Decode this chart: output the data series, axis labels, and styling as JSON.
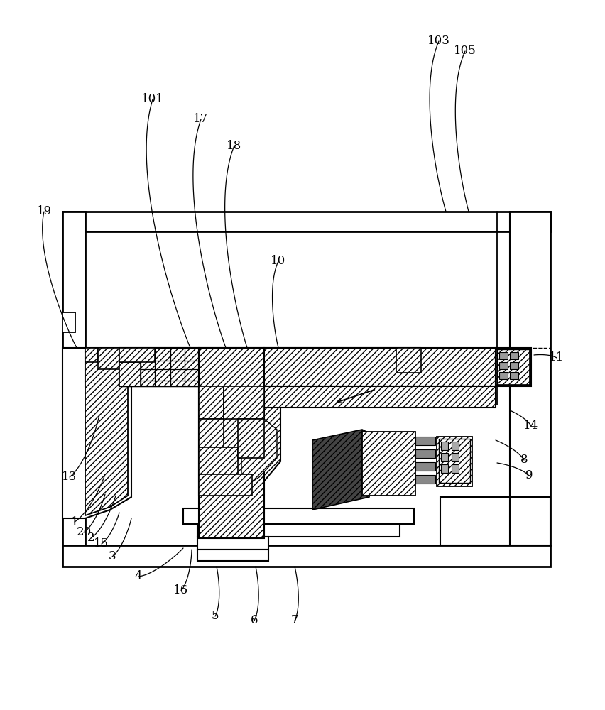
{
  "bg_color": "#ffffff",
  "lc": "#000000",
  "fig_w": 8.52,
  "fig_h": 10.0,
  "dpi": 100,
  "labels": [
    [
      "1",
      105,
      735,
      148,
      668
    ],
    [
      "2",
      128,
      758,
      163,
      698
    ],
    [
      "3",
      158,
      784,
      185,
      730
    ],
    [
      "4",
      195,
      812,
      258,
      772
    ],
    [
      "5",
      303,
      868,
      305,
      798
    ],
    [
      "6",
      358,
      874,
      360,
      798
    ],
    [
      "7",
      415,
      874,
      415,
      798
    ],
    [
      "8",
      738,
      648,
      698,
      620
    ],
    [
      "9",
      745,
      670,
      700,
      652
    ],
    [
      "10",
      392,
      368,
      392,
      490
    ],
    [
      "11",
      784,
      504,
      752,
      500
    ],
    [
      "13",
      98,
      672,
      140,
      584
    ],
    [
      "14",
      748,
      600,
      718,
      578
    ],
    [
      "15",
      143,
      766,
      168,
      722
    ],
    [
      "16",
      255,
      832,
      270,
      774
    ],
    [
      "17",
      283,
      168,
      318,
      490
    ],
    [
      "18",
      330,
      205,
      348,
      490
    ],
    [
      "19",
      62,
      298,
      108,
      490
    ],
    [
      "20",
      118,
      750,
      148,
      696
    ],
    [
      "101",
      215,
      140,
      268,
      490
    ],
    [
      "103",
      618,
      58,
      628,
      298
    ],
    [
      "105",
      655,
      72,
      660,
      298
    ]
  ]
}
